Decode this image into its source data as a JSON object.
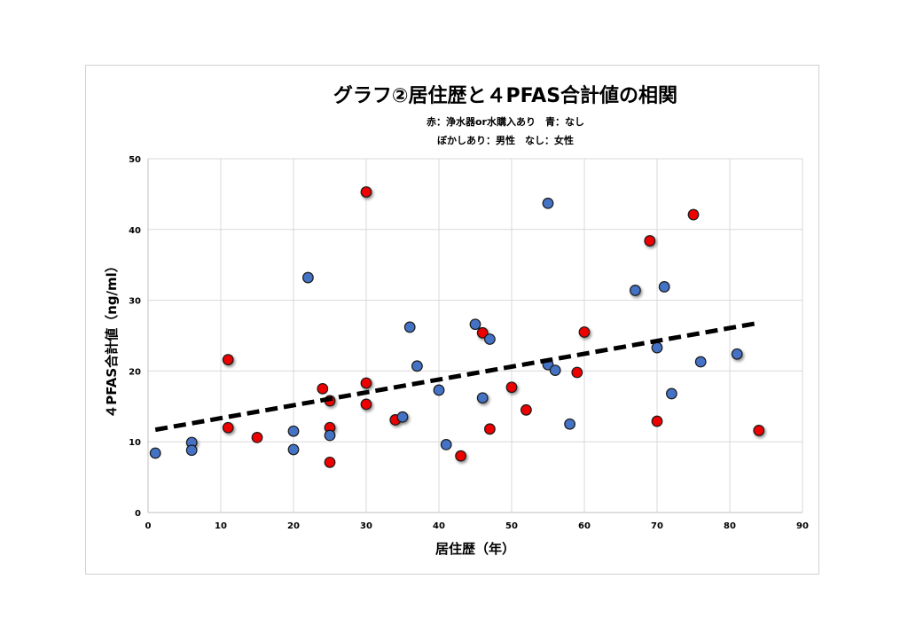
{
  "chart_data": {
    "type": "scatter",
    "title": "グラフ②居住歴と４PFAS合計値の相関",
    "subtitles": [
      "赤：浄水器or水購入あり　青：なし",
      "ぼかしあり：男性　なし：女性"
    ],
    "xlabel": "居住歴（年）",
    "ylabel": "４PFAS合計値（ng/ml）",
    "xlim": [
      0,
      90
    ],
    "ylim": [
      0,
      50
    ],
    "xticks": [
      0,
      10,
      20,
      30,
      40,
      50,
      60,
      70,
      80,
      90
    ],
    "yticks": [
      0,
      10,
      20,
      30,
      40,
      50
    ],
    "grid": true,
    "trendline": {
      "x": [
        1,
        84
      ],
      "y": [
        11.7,
        26.8
      ],
      "style": "dashed",
      "color": "#000000"
    },
    "series": [
      {
        "name": "浄水器or水購入あり",
        "color": "#ee0000",
        "points": [
          {
            "x": 11,
            "y": 21.6,
            "shadow": true
          },
          {
            "x": 11,
            "y": 12.0,
            "shadow": true
          },
          {
            "x": 15,
            "y": 10.6,
            "shadow": false
          },
          {
            "x": 24,
            "y": 17.5,
            "shadow": false
          },
          {
            "x": 25,
            "y": 15.8,
            "shadow": true
          },
          {
            "x": 25,
            "y": 12.0,
            "shadow": true
          },
          {
            "x": 25,
            "y": 7.1,
            "shadow": false
          },
          {
            "x": 30,
            "y": 45.3,
            "shadow": true
          },
          {
            "x": 30,
            "y": 18.3,
            "shadow": true
          },
          {
            "x": 30,
            "y": 15.3,
            "shadow": true
          },
          {
            "x": 34,
            "y": 13.1,
            "shadow": true
          },
          {
            "x": 43,
            "y": 8.0,
            "shadow": true
          },
          {
            "x": 46,
            "y": 25.4,
            "shadow": true
          },
          {
            "x": 47,
            "y": 11.8,
            "shadow": false
          },
          {
            "x": 50,
            "y": 17.7,
            "shadow": true
          },
          {
            "x": 52,
            "y": 14.5,
            "shadow": false
          },
          {
            "x": 59,
            "y": 19.8,
            "shadow": false
          },
          {
            "x": 60,
            "y": 25.5,
            "shadow": true
          },
          {
            "x": 69,
            "y": 38.4,
            "shadow": true
          },
          {
            "x": 70,
            "y": 12.9,
            "shadow": false
          },
          {
            "x": 75,
            "y": 42.1,
            "shadow": false
          },
          {
            "x": 84,
            "y": 11.6,
            "shadow": true
          }
        ]
      },
      {
        "name": "なし",
        "color": "#4472c4",
        "points": [
          {
            "x": 1,
            "y": 8.4,
            "shadow": false
          },
          {
            "x": 6,
            "y": 9.9,
            "shadow": true
          },
          {
            "x": 6,
            "y": 8.8,
            "shadow": false
          },
          {
            "x": 20,
            "y": 11.5,
            "shadow": false
          },
          {
            "x": 20,
            "y": 8.9,
            "shadow": false
          },
          {
            "x": 22,
            "y": 33.2,
            "shadow": false
          },
          {
            "x": 25,
            "y": 10.9,
            "shadow": false
          },
          {
            "x": 35,
            "y": 13.5,
            "shadow": true
          },
          {
            "x": 36,
            "y": 26.2,
            "shadow": false
          },
          {
            "x": 37,
            "y": 20.7,
            "shadow": false
          },
          {
            "x": 40,
            "y": 17.3,
            "shadow": false
          },
          {
            "x": 41,
            "y": 9.6,
            "shadow": false
          },
          {
            "x": 45,
            "y": 26.6,
            "shadow": false
          },
          {
            "x": 46,
            "y": 16.2,
            "shadow": true
          },
          {
            "x": 47,
            "y": 24.5,
            "shadow": false
          },
          {
            "x": 55,
            "y": 43.7,
            "shadow": false
          },
          {
            "x": 55,
            "y": 20.9,
            "shadow": false
          },
          {
            "x": 56,
            "y": 20.1,
            "shadow": false
          },
          {
            "x": 58,
            "y": 12.5,
            "shadow": false
          },
          {
            "x": 67,
            "y": 31.4,
            "shadow": true
          },
          {
            "x": 70,
            "y": 23.3,
            "shadow": false
          },
          {
            "x": 71,
            "y": 31.9,
            "shadow": false
          },
          {
            "x": 72,
            "y": 16.8,
            "shadow": false
          },
          {
            "x": 76,
            "y": 21.3,
            "shadow": false
          },
          {
            "x": 81,
            "y": 22.4,
            "shadow": true
          }
        ]
      }
    ]
  }
}
